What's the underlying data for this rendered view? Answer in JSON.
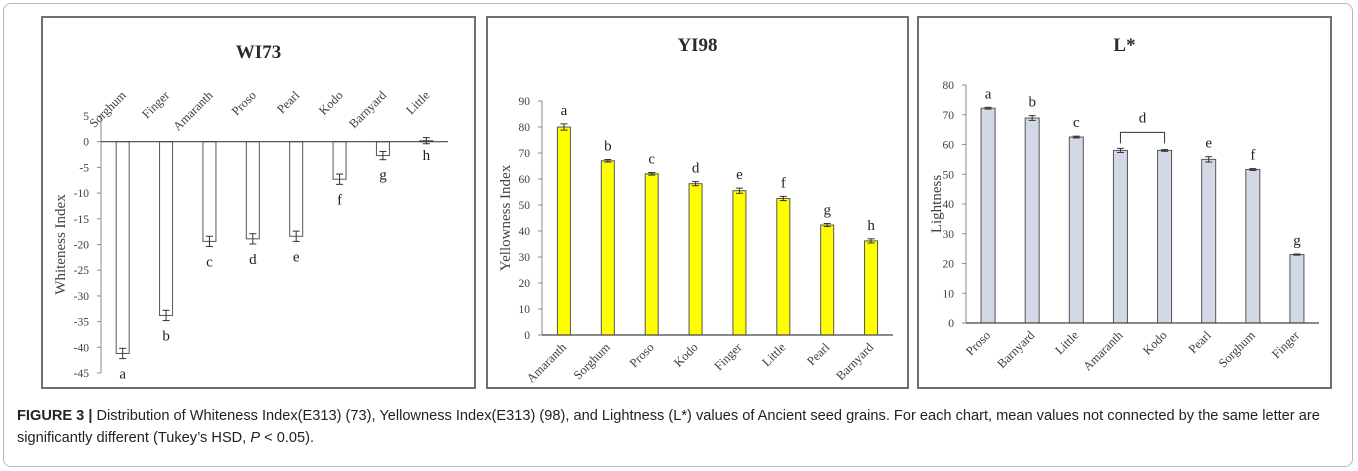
{
  "caption": {
    "label": "FIGURE 3 |",
    "text_before_p": " Distribution of Whiteness Index(E313) (73), Yellowness Index(E313) (98), and Lightness (L*) values of Ancient seed grains. For each chart, mean values not connected by the same letter are significantly different (Tukey’s HSD, ",
    "p_symbol": "P",
    "text_after_p": " < 0.05)."
  },
  "chart_data": [
    {
      "type": "bar",
      "title": "WI73",
      "xlabel": "",
      "ylabel": "Whiteness Index",
      "ylim": [
        -45,
        5
      ],
      "yticks": [
        5,
        0,
        -5,
        -10,
        -15,
        -20,
        -25,
        -30,
        -35,
        -40,
        -45
      ],
      "categories": [
        "Sorghum",
        "Finger",
        "Amaranth",
        "Proso",
        "Pearl",
        "Kodo",
        "Barnyard",
        "Little"
      ],
      "values": [
        -41.2,
        -33.8,
        -19.4,
        -18.9,
        -18.4,
        -7.3,
        -2.7,
        0.2
      ],
      "errors": [
        1.0,
        1.0,
        1.0,
        1.0,
        1.0,
        1.0,
        0.8,
        0.6
      ],
      "letters": [
        "a",
        "b",
        "c",
        "d",
        "e",
        "f",
        "g",
        "h"
      ],
      "bar_color": "#ffffff",
      "category_labels_position": "top",
      "grid": false
    },
    {
      "type": "bar",
      "title": "YI98",
      "xlabel": "",
      "ylabel": "Yellowness Index",
      "ylim": [
        0,
        90
      ],
      "yticks": [
        0,
        10,
        20,
        30,
        40,
        50,
        60,
        70,
        80,
        90
      ],
      "categories": [
        "Amaranth",
        "Sorghum",
        "Proso",
        "Kodo",
        "Finger",
        "Little",
        "Pearl",
        "Barnyard"
      ],
      "values": [
        80.0,
        67.0,
        62.0,
        58.2,
        55.5,
        52.5,
        42.3,
        36.2
      ],
      "errors": [
        1.2,
        0.5,
        0.5,
        0.8,
        1.0,
        0.8,
        0.6,
        0.8
      ],
      "letters": [
        "a",
        "b",
        "c",
        "d",
        "e",
        "f",
        "g",
        "h"
      ],
      "bar_color": "#ffff00",
      "grid": false
    },
    {
      "type": "bar",
      "title": "L*",
      "xlabel": "",
      "ylabel": "Lightness",
      "ylim": [
        0,
        80
      ],
      "yticks": [
        0,
        10,
        20,
        30,
        40,
        50,
        60,
        70,
        80
      ],
      "categories": [
        "Proso",
        "Barnyard",
        "Little",
        "Amaranth",
        "Kodo",
        "Pearl",
        "Sorghum",
        "Finger"
      ],
      "values": [
        72.2,
        68.9,
        62.5,
        58.0,
        58.0,
        55.0,
        51.6,
        23.0
      ],
      "errors": [
        0.3,
        0.8,
        0.3,
        0.7,
        0.3,
        0.9,
        0.3,
        0.2
      ],
      "letters": [
        "a",
        "b",
        "c",
        "d",
        "d",
        "e",
        "f",
        "g"
      ],
      "bar_color": "#d3d8e6",
      "grid": false
    }
  ]
}
